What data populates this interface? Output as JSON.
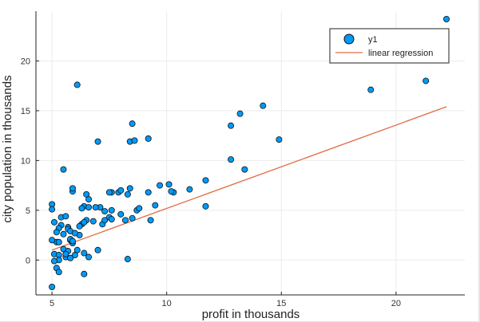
{
  "chart_data": {
    "type": "scatter",
    "title": "",
    "xlabel": "profit in thousands",
    "ylabel": "city population in thousands",
    "xlim": [
      4.3,
      23.0
    ],
    "ylim": [
      -3.5,
      25.0
    ],
    "xticks": [
      5,
      10,
      15,
      20
    ],
    "yticks": [
      0,
      5,
      10,
      15,
      20
    ],
    "grid": true,
    "legend": "top-right",
    "colors": {
      "points": "#009af9",
      "point_edge": "#111111",
      "line": "#e26f46",
      "grid": "#ebebeb",
      "axis": "#222222"
    },
    "series": [
      {
        "name": "y1",
        "kind": "scatter",
        "points": [
          [
            6.1,
            17.6
          ],
          [
            5.5,
            9.1
          ],
          [
            8.5,
            13.7
          ],
          [
            7.0,
            11.9
          ],
          [
            5.9,
            6.9
          ],
          [
            8.4,
            11.9
          ],
          [
            7.5,
            4.3
          ],
          [
            8.6,
            12.0
          ],
          [
            6.5,
            6.6
          ],
          [
            5.1,
            3.8
          ],
          [
            5.7,
            3.3
          ],
          [
            14.2,
            15.5
          ],
          [
            5.7,
            3.1
          ],
          [
            8.4,
            7.2
          ],
          [
            6.4,
            0.7
          ],
          [
            5.4,
            3.5
          ],
          [
            6.4,
            5.4
          ],
          [
            5.1,
            0.6
          ],
          [
            5.0,
            5.6
          ],
          [
            5.0,
            5.1
          ],
          [
            5.2,
            1.8
          ],
          [
            6.3,
            3.6
          ],
          [
            5.3,
            0.5
          ],
          [
            5.5,
            1.1
          ],
          [
            5.6,
            0.3
          ],
          [
            5.8,
            2.0
          ],
          [
            6.1,
            1.0
          ],
          [
            6.6,
            0.3
          ],
          [
            5.7,
            0.9
          ],
          [
            5.2,
            -0.8
          ],
          [
            5.0,
            -2.7
          ],
          [
            5.3,
            -1.2
          ],
          [
            6.4,
            -1.4
          ],
          [
            7.3,
            4.9
          ],
          [
            8.3,
            0.1
          ],
          [
            7.0,
            1.0
          ],
          [
            7.2,
            3.6
          ],
          [
            7.6,
            4.1
          ],
          [
            8.0,
            4.6
          ],
          [
            8.2,
            4.0
          ],
          [
            8.7,
            5.0
          ],
          [
            8.5,
            4.2
          ],
          [
            9.3,
            4.0
          ],
          [
            9.5,
            5.5
          ],
          [
            10.3,
            6.8
          ],
          [
            10.1,
            7.6
          ],
          [
            10.2,
            6.9
          ],
          [
            11.0,
            7.1
          ],
          [
            11.7,
            8.0
          ],
          [
            11.7,
            5.4
          ],
          [
            12.8,
            13.5
          ],
          [
            13.2,
            14.7
          ],
          [
            12.8,
            10.1
          ],
          [
            13.4,
            9.1
          ],
          [
            14.9,
            12.1
          ],
          [
            18.9,
            17.1
          ],
          [
            21.3,
            18.0
          ],
          [
            22.2,
            24.2
          ],
          [
            9.2,
            12.2
          ],
          [
            7.9,
            6.8
          ],
          [
            8.3,
            6.6
          ],
          [
            7.6,
            6.8
          ],
          [
            6.8,
            3.9
          ],
          [
            5.9,
            7.2
          ],
          [
            6.6,
            5.3
          ],
          [
            6.5,
            4.0
          ],
          [
            6.6,
            6.1
          ],
          [
            7.1,
            5.3
          ],
          [
            6.2,
            2.5
          ],
          [
            5.4,
            4.3
          ],
          [
            5.0,
            2.0
          ],
          [
            5.8,
            2.9
          ],
          [
            6.0,
            2.7
          ],
          [
            5.6,
            4.4
          ],
          [
            5.5,
            2.6
          ],
          [
            5.8,
            2.1
          ],
          [
            6.2,
            3.4
          ],
          [
            6.4,
            3.8
          ],
          [
            6.9,
            5.3
          ],
          [
            7.6,
            5.0
          ],
          [
            8.0,
            7.0
          ],
          [
            8.8,
            5.2
          ],
          [
            9.2,
            6.8
          ],
          [
            9.7,
            7.5
          ],
          [
            5.3,
            3.2
          ],
          [
            5.9,
            1.7
          ],
          [
            5.3,
            0.0
          ],
          [
            5.6,
            0.6
          ],
          [
            6.0,
            0.5
          ],
          [
            5.1,
            -0.1
          ],
          [
            5.3,
            1.8
          ],
          [
            5.8,
            0.2
          ],
          [
            5.2,
            2.8
          ],
          [
            5.9,
            1.9
          ],
          [
            6.3,
            5.2
          ],
          [
            7.3,
            4.0
          ],
          [
            7.5,
            6.8
          ]
        ]
      },
      {
        "name": "linear regression",
        "kind": "line",
        "x": [
          5.0,
          22.2
        ],
        "y": [
          1.0,
          15.4
        ]
      }
    ]
  }
}
